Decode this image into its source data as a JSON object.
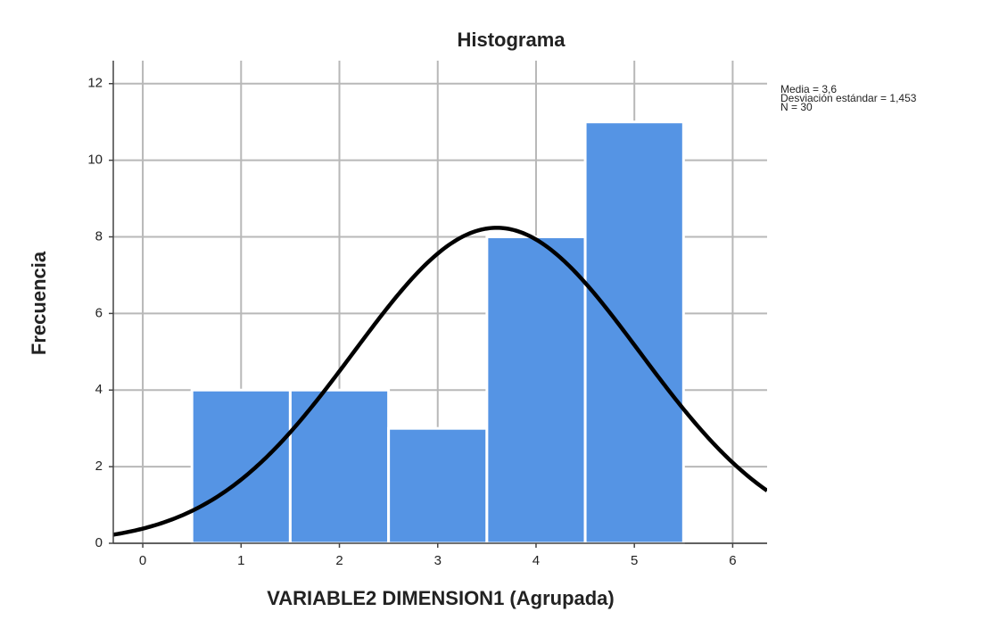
{
  "chart_data": {
    "type": "histogram",
    "title": "Histograma",
    "x_label": "VARIABLE2 DIMENSION1 (Agrupada)",
    "y_label": "Frecuencia",
    "bins": [
      0.5,
      1.5,
      2.5,
      3.5,
      4.5,
      5.5
    ],
    "values": [
      4,
      4,
      3,
      8,
      11
    ],
    "color": "#5594e4",
    "xlim": [
      -0.3,
      6.35
    ],
    "xticks": [
      0,
      1,
      2,
      3,
      4,
      5,
      6
    ],
    "ylim": [
      0,
      12.6
    ],
    "yticks": [
      0,
      2,
      4,
      6,
      8,
      10,
      12
    ],
    "grid": true,
    "normal_curve": {
      "mean": 3.6,
      "sd": 1.453,
      "n": 30,
      "color": "#000000"
    },
    "annotations": [
      "Media = 3,6",
      "Desviación estándar = 1,453",
      "N = 30"
    ]
  }
}
